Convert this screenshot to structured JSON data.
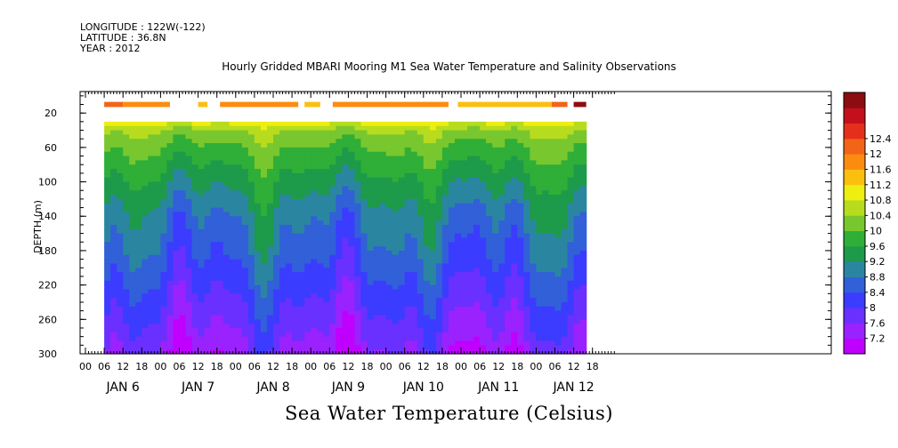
{
  "header": {
    "longitude": "LONGITUDE : 122W(-122)",
    "latitude": "LATITUDE : 36.8N",
    "year": "YEAR : 2012"
  },
  "chart_data": {
    "type": "heatmap",
    "title": "Hourly Gridded MBARI Mooring M1 Sea Water Temperature and Salinity Observations",
    "variable_label": "Sea Water Temperature (Celsius)",
    "ylabel": "DEPTH (m)",
    "y_inverted": true,
    "ylim": [
      0,
      300
    ],
    "y_ticks": [
      20,
      60,
      100,
      140,
      180,
      220,
      260,
      300
    ],
    "x_hour_ticks": [
      "00",
      "06",
      "12",
      "18",
      "00",
      "06",
      "12",
      "18",
      "00",
      "06",
      "12",
      "18",
      "00",
      "06",
      "12",
      "18",
      "00",
      "06",
      "12",
      "18",
      "00",
      "06",
      "12",
      "18",
      "00",
      "06",
      "12",
      "18"
    ],
    "x_day_labels": [
      "JAN 6",
      "JAN 7",
      "JAN 8",
      "JAN 9",
      "JAN 10",
      "JAN 11",
      "JAN 12"
    ],
    "colorbar": {
      "levels": [
        7.2,
        7.6,
        8,
        8.4,
        8.8,
        9.2,
        9.6,
        10,
        10.4,
        10.8,
        11.2,
        11.6,
        12,
        12.4
      ],
      "colors": [
        "#c000ff",
        "#9a22ff",
        "#6a30ff",
        "#3b3cff",
        "#3160d8",
        "#2a86a0",
        "#1d9a4a",
        "#2fae38",
        "#79c72e",
        "#b7dc1e",
        "#eeee10",
        "#fbbf10",
        "#fb8c10",
        "#f26418",
        "#e62e1c",
        "#c4101c",
        "#8c0c12"
      ]
    },
    "surface_depth_m": 10,
    "surface_temperature_blocks": [
      {
        "start": "JAN 6 06",
        "end": "JAN 6 12",
        "value": 12.2
      },
      {
        "start": "JAN 6 12",
        "end": "JAN 7 03",
        "value": 11.9
      },
      {
        "start": "JAN 7 12",
        "end": "JAN 7 15",
        "value": 11.4
      },
      {
        "start": "JAN 7 19",
        "end": "JAN 8 20",
        "value": 11.9
      },
      {
        "start": "JAN 8 22",
        "end": "JAN 9 03",
        "value": 11.4
      },
      {
        "start": "JAN 9 07",
        "end": "JAN 10 20",
        "value": 11.9
      },
      {
        "start": "JAN 10 23",
        "end": "JAN 12 05",
        "value": 11.4
      },
      {
        "start": "JAN 12 05",
        "end": "JAN 12 10",
        "value": 12.2
      },
      {
        "start": "JAN 12 12",
        "end": "JAN 12 16",
        "value": 12.4
      }
    ],
    "profile_depth_range_m": [
      30,
      300
    ],
    "profile_time_range": [
      "JAN 6 06",
      "JAN 12 15"
    ],
    "temperature_at_depth_m": {
      "depths": [
        30,
        40,
        60,
        100,
        140,
        180,
        220,
        260,
        300
      ],
      "values": [
        11.0,
        10.4,
        10.0,
        9.4,
        8.9,
        8.6,
        8.2,
        7.8,
        7.4
      ]
    }
  }
}
